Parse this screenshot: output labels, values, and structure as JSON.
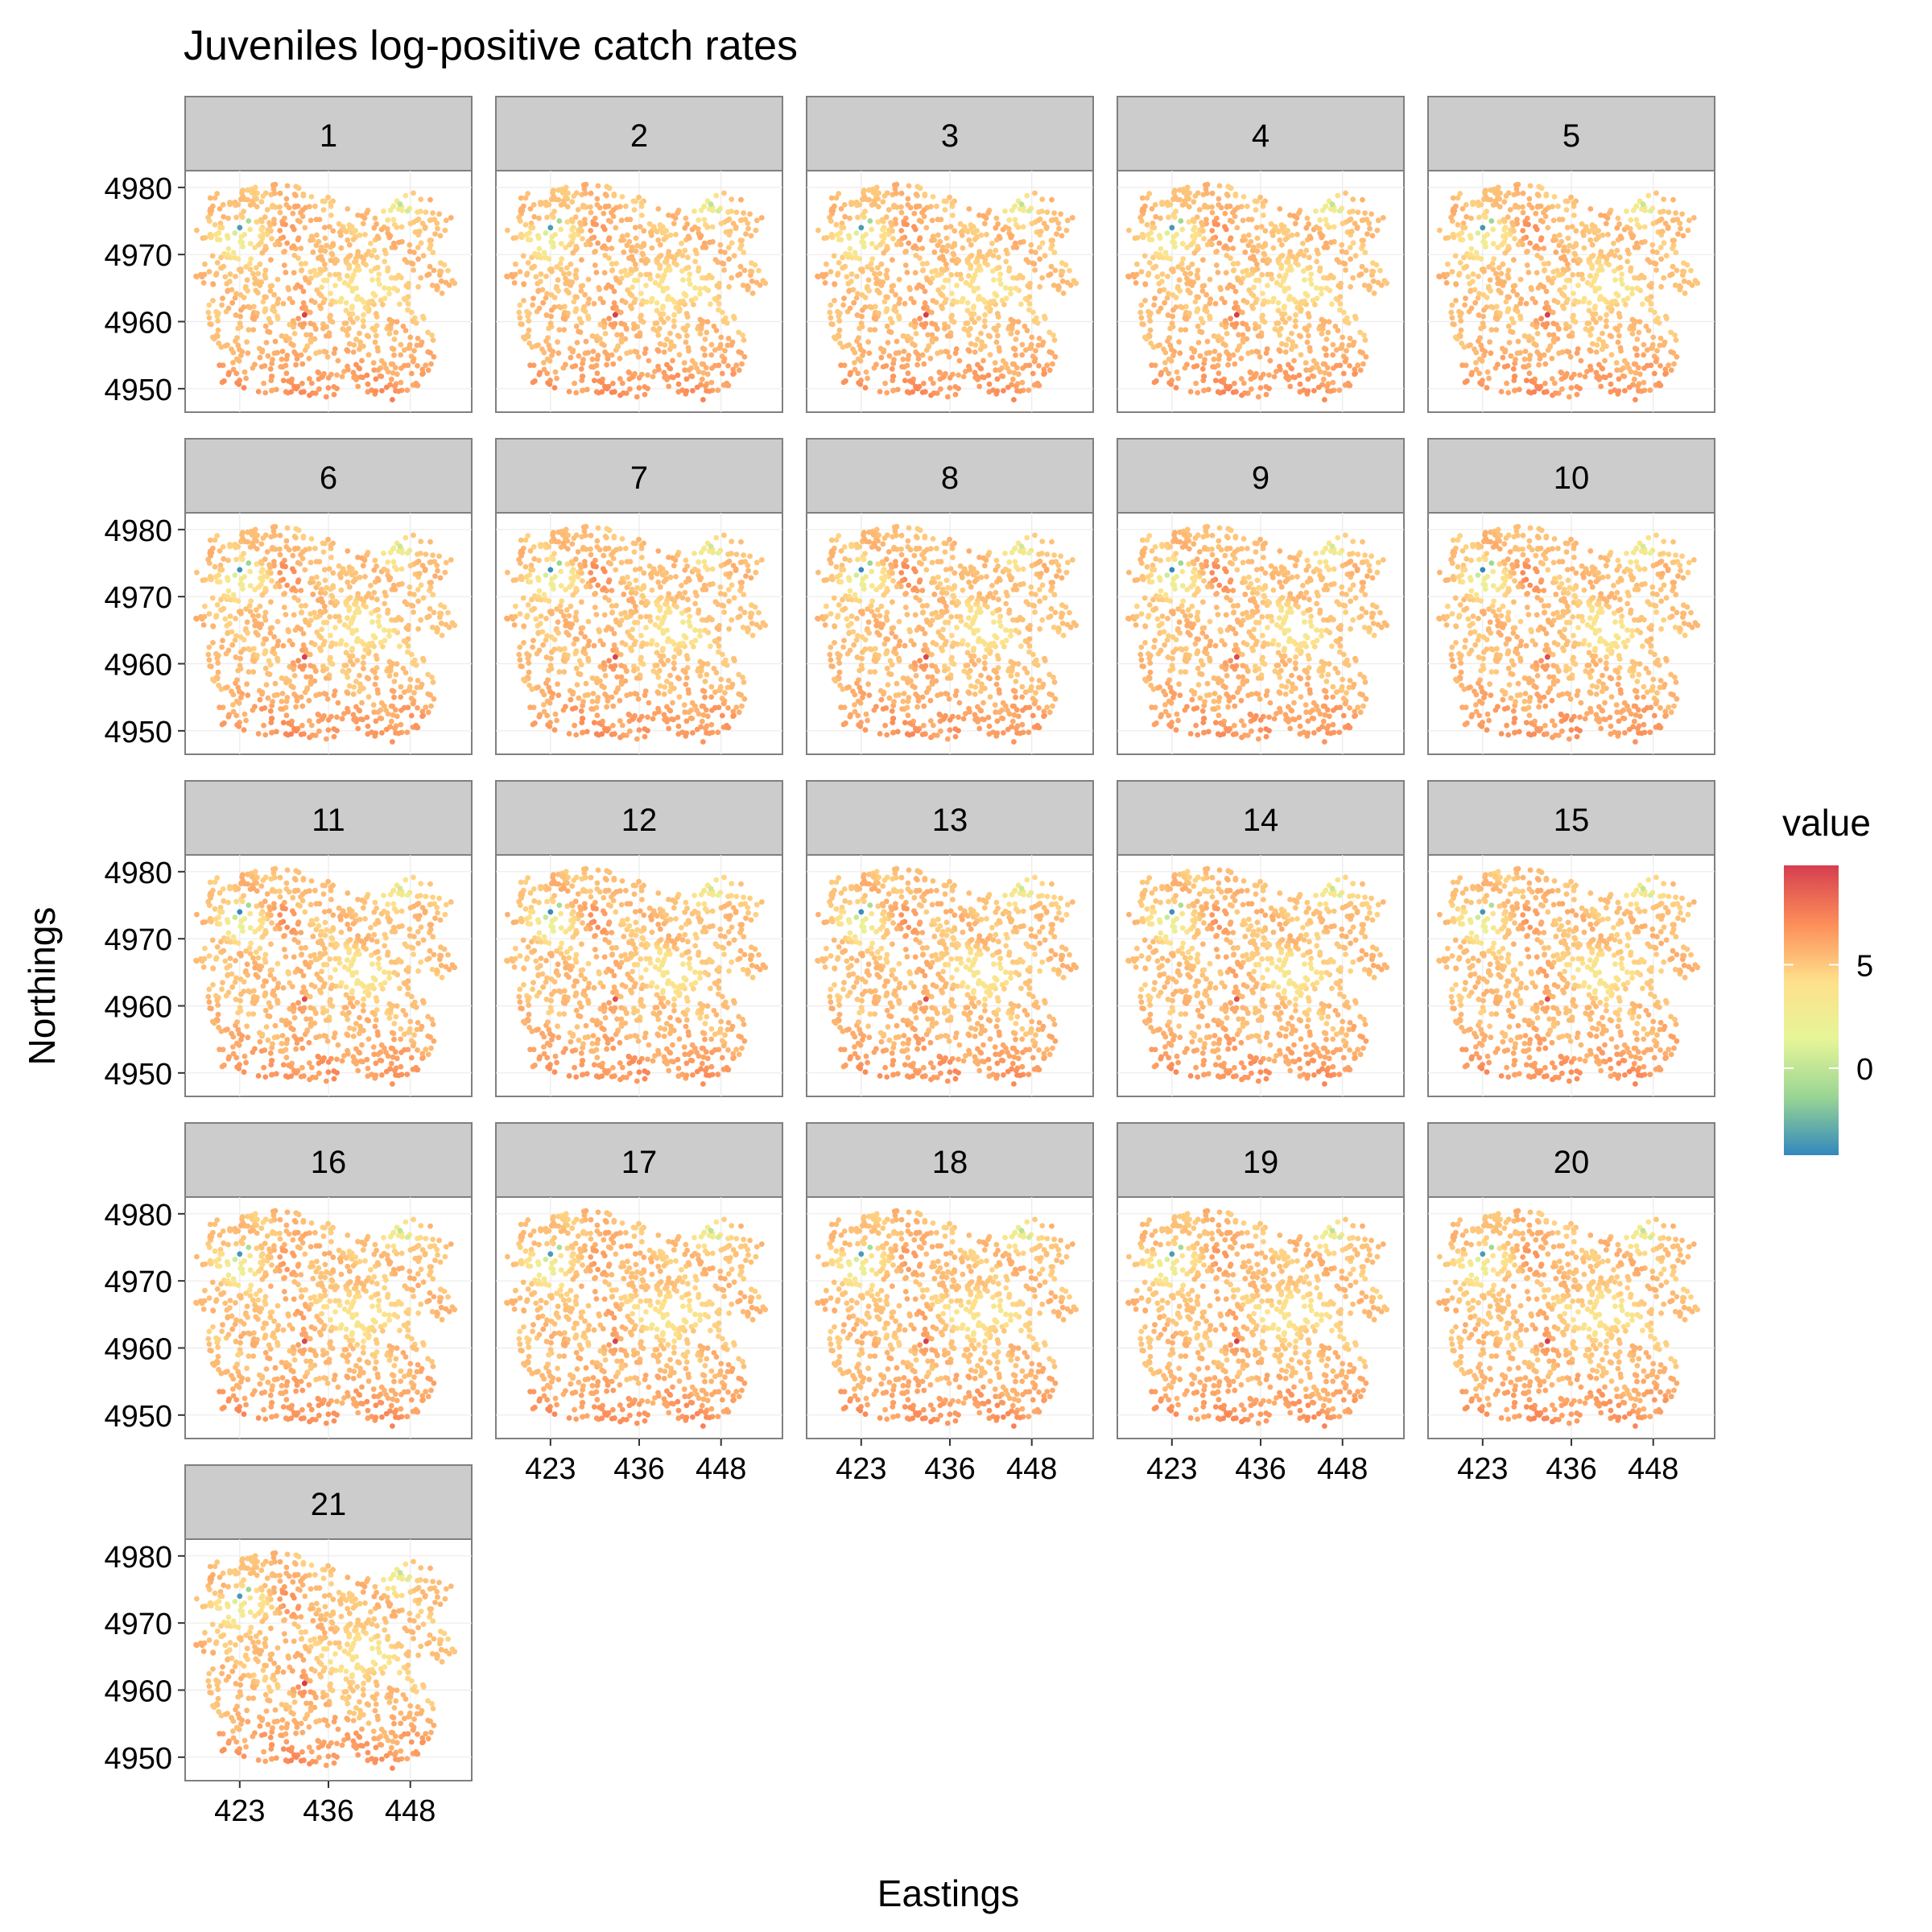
{
  "chart_data": {
    "type": "scatter",
    "title": "Juveniles log-positive catch rates",
    "xlabel": "Eastings",
    "ylabel": "Northings",
    "panels": [
      "1",
      "2",
      "3",
      "4",
      "5",
      "6",
      "7",
      "8",
      "9",
      "10",
      "11",
      "12",
      "13",
      "14",
      "15",
      "16",
      "17",
      "18",
      "19",
      "20",
      "21"
    ],
    "facet_columns": 5,
    "x_ticks": [
      423,
      436,
      448
    ],
    "y_ticks": [
      4950,
      4960,
      4970,
      4980
    ],
    "xlim": [
      415,
      457
    ],
    "ylim": [
      4946.5,
      4982.5
    ],
    "grid": true,
    "legend": {
      "title": "value",
      "position": "right",
      "ticks": [
        0,
        5
      ],
      "range": [
        -4.2,
        9.8
      ],
      "colors": [
        "#3288bd",
        "#99d594",
        "#e6f598",
        "#fee08b",
        "#fc8d59",
        "#d53e4f"
      ]
    }
  }
}
